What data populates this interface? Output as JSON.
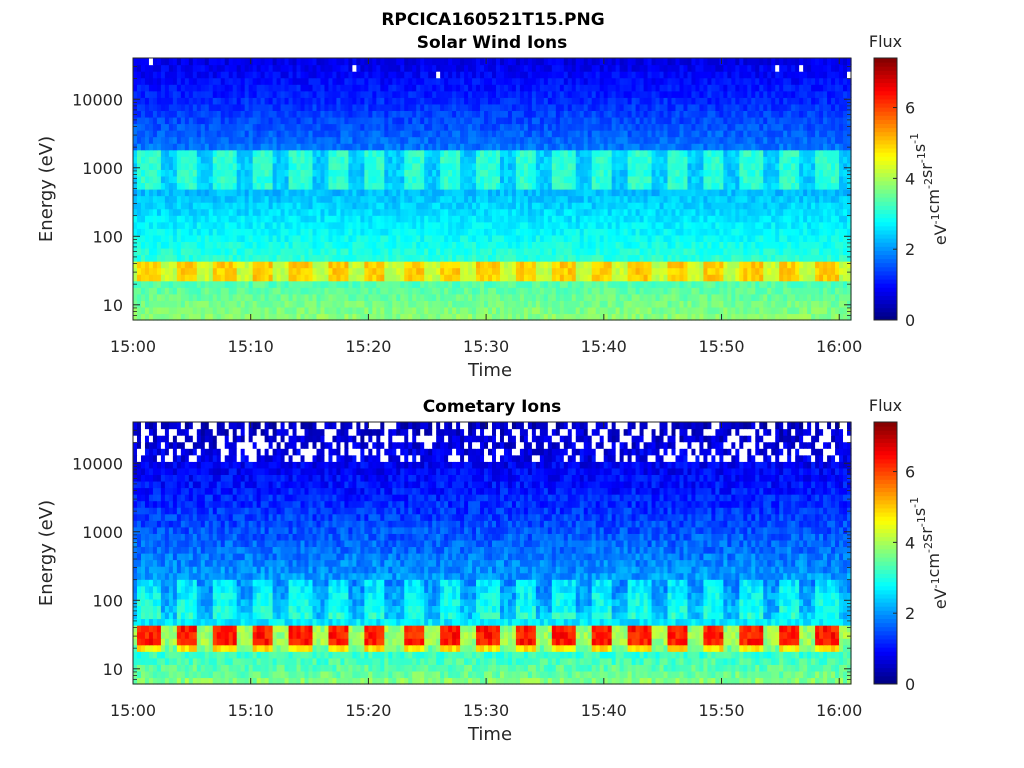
{
  "figure": {
    "title": "RPCICA160521T15.PNG"
  },
  "chart_data": [
    {
      "type": "heatmap",
      "title": "Solar Wind Ions",
      "xlabel": "Time",
      "ylabel": "Energy (eV)",
      "x_ticks": [
        "15:00",
        "15:10",
        "15:20",
        "15:30",
        "15:40",
        "15:50",
        "16:00"
      ],
      "x_range_minutes": [
        0,
        61
      ],
      "y_scale": "log",
      "y_ticks": [
        "10",
        "100",
        "1000",
        "10000"
      ],
      "y_range": [
        6,
        40000
      ],
      "colorbar": {
        "title": "Flux",
        "label": "eV-1cm-2sr-1s-1",
        "label_main": [
          "eV",
          "cm",
          "sr",
          "s"
        ],
        "label_sup": [
          "-1",
          "-2",
          "-1",
          "-1"
        ],
        "ticks": [
          "0",
          "2",
          "4",
          "6"
        ],
        "range": [
          0,
          7.4
        ],
        "colormap": "jet"
      },
      "features": {
        "peak_band_energy_eV": [
          25,
          40
        ],
        "peak_band_flux": 5.0,
        "secondary_band_energy_eV": [
          500,
          2000
        ],
        "secondary_band_flux": 3.1,
        "background_high_energy_flux": 1.0,
        "low_energy_flux": 3.8,
        "sweep_period_minutes": 3.2
      }
    },
    {
      "type": "heatmap",
      "title": "Cometary Ions",
      "xlabel": "Time",
      "ylabel": "Energy (eV)",
      "x_ticks": [
        "15:00",
        "15:10",
        "15:20",
        "15:30",
        "15:40",
        "15:50",
        "16:00"
      ],
      "x_range_minutes": [
        0,
        61
      ],
      "y_scale": "log",
      "y_ticks": [
        "10",
        "100",
        "1000",
        "10000"
      ],
      "y_range": [
        6,
        40000
      ],
      "colorbar": {
        "title": "Flux",
        "label": "eV-1cm-2sr-1s-1",
        "label_main": [
          "eV",
          "cm",
          "sr",
          "s"
        ],
        "label_sup": [
          "-1",
          "-2",
          "-1",
          "-1"
        ],
        "ticks": [
          "0",
          "2",
          "4",
          "6"
        ],
        "range": [
          0,
          7.4
        ],
        "colormap": "jet"
      },
      "features": {
        "peak_band_energy_eV": [
          25,
          40
        ],
        "peak_band_flux": 6.3,
        "background_high_energy_flux": 0.6,
        "low_energy_flux": 3.9,
        "no_data_above_eV": 10000,
        "sweep_period_minutes": 3.2
      }
    }
  ]
}
